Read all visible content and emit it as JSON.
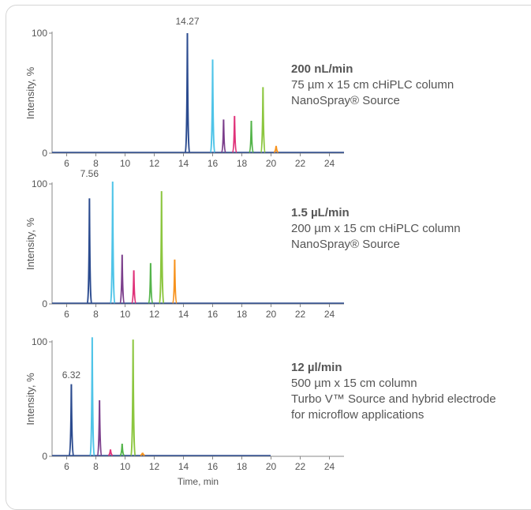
{
  "chart_data": [
    {
      "type": "line",
      "ylabel": "Intensity, %",
      "xlabel": "",
      "xlim": [
        5,
        25
      ],
      "x_ticks": [
        6,
        8,
        10,
        12,
        14,
        16,
        18,
        20,
        22,
        24
      ],
      "y_ticks": [
        0,
        100
      ],
      "annotation": {
        "text": "14.27",
        "x": 14.27
      },
      "description": {
        "title": "200 nL/min",
        "lines": [
          "75 µm x 15 cm cHiPLC column",
          "NanoSpray® Source"
        ]
      },
      "peaks": [
        {
          "x": 14.27,
          "y": 100,
          "color": "#2b4b8f"
        },
        {
          "x": 16.0,
          "y": 78,
          "color": "#4fc4e8"
        },
        {
          "x": 16.75,
          "y": 28,
          "color": "#7c3f8c"
        },
        {
          "x": 17.5,
          "y": 31,
          "color": "#e0337a"
        },
        {
          "x": 18.65,
          "y": 27,
          "color": "#54b44a"
        },
        {
          "x": 19.45,
          "y": 55,
          "color": "#8cc63f"
        },
        {
          "x": 20.35,
          "y": 6,
          "color": "#f7931e"
        }
      ]
    },
    {
      "type": "line",
      "ylabel": "Intensity, %",
      "xlabel": "",
      "xlim": [
        5,
        25
      ],
      "x_ticks": [
        6,
        8,
        10,
        12,
        14,
        16,
        18,
        20,
        22,
        24
      ],
      "y_ticks": [
        0,
        100
      ],
      "annotation": {
        "text": "7.56",
        "x": 7.56
      },
      "description": {
        "title": "1.5 µL/min",
        "lines": [
          "200 µm x 15 cm cHiPLC column",
          "NanoSpray® Source"
        ]
      },
      "peaks": [
        {
          "x": 7.56,
          "y": 88,
          "color": "#2b4b8f"
        },
        {
          "x": 9.15,
          "y": 102,
          "color": "#4fc4e8"
        },
        {
          "x": 9.8,
          "y": 41,
          "color": "#7c3f8c"
        },
        {
          "x": 10.6,
          "y": 28,
          "color": "#e0337a"
        },
        {
          "x": 11.75,
          "y": 34,
          "color": "#54b44a"
        },
        {
          "x": 12.5,
          "y": 94,
          "color": "#8cc63f"
        },
        {
          "x": 13.4,
          "y": 37,
          "color": "#f7931e"
        }
      ]
    },
    {
      "type": "line",
      "ylabel": "Intensity, %",
      "xlabel": "Time, min",
      "xlim": [
        5,
        25
      ],
      "x_ticks": [
        6,
        8,
        10,
        12,
        14,
        16,
        18,
        20,
        22,
        24
      ],
      "y_ticks": [
        0,
        100
      ],
      "annotation": {
        "text": "6.32",
        "x": 6.32
      },
      "description": {
        "title": "12 µl/min",
        "lines": [
          "500 µm x 15 cm column",
          "Turbo V™ Source and hybrid electrode",
          "for microflow applications"
        ]
      },
      "peaks": [
        {
          "x": 6.32,
          "y": 63,
          "color": "#2b4b8f"
        },
        {
          "x": 7.75,
          "y": 104,
          "color": "#4fc4e8"
        },
        {
          "x": 8.25,
          "y": 49,
          "color": "#7c3f8c"
        },
        {
          "x": 9.0,
          "y": 6,
          "color": "#e0337a"
        },
        {
          "x": 9.8,
          "y": 11,
          "color": "#54b44a"
        },
        {
          "x": 10.55,
          "y": 102,
          "color": "#8cc63f"
        },
        {
          "x": 11.2,
          "y": 3,
          "color": "#f7931e"
        }
      ]
    }
  ]
}
